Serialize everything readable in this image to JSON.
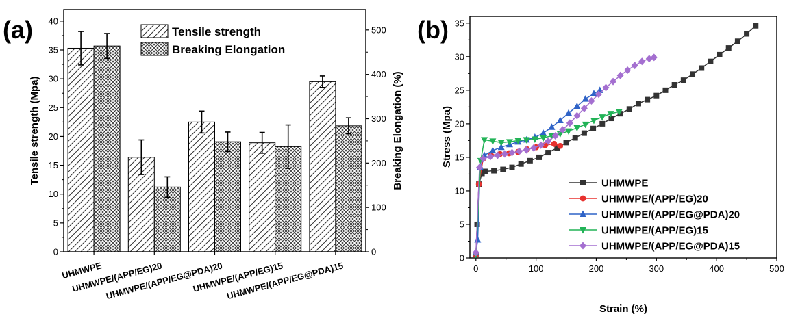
{
  "chart_data": [
    {
      "panel_label": "(a)",
      "type": "bar",
      "categories": [
        "UHMWPE",
        "UHMWPE/(APP/EG)20",
        "UHMWPE/(APP/EG@PDA)20",
        "UHMWPE/(APP/EG)15",
        "UHMWPE/(APP/EG@PDA)15"
      ],
      "series": [
        {
          "name": "Tensile strength",
          "axis": "left",
          "pattern": "diagonal-hatch",
          "values": [
            35.3,
            16.4,
            22.5,
            18.9,
            29.5
          ],
          "errors": [
            2.9,
            3.0,
            1.9,
            1.8,
            1.0
          ]
        },
        {
          "name": "Breaking Elongation",
          "axis": "right",
          "pattern": "crosshatch",
          "values": [
            464,
            146,
            248,
            237,
            284
          ],
          "errors": [
            28,
            23,
            22,
            49,
            18
          ]
        }
      ],
      "ylabel_left": "Tensile strength (Mpa)",
      "ylabel_right": "Breaking Elongation (%)",
      "ylim_left": [
        0,
        42
      ],
      "ylim_right": [
        0,
        546
      ],
      "yticks_left": [
        "0",
        "5",
        "10",
        "15",
        "20",
        "25",
        "30",
        "35",
        "40"
      ],
      "yticks_right": [
        "0",
        "100",
        "200",
        "300",
        "400",
        "500"
      ],
      "legend_position": "top-center"
    },
    {
      "panel_label": "(b)",
      "type": "line",
      "xlabel": "Strain (%)",
      "ylabel": "Stress (Mpa)",
      "xlim": [
        -10,
        500
      ],
      "ylim": [
        0,
        36
      ],
      "xticks": [
        "0",
        "100",
        "200",
        "300",
        "400",
        "500"
      ],
      "yticks": [
        "0",
        "5",
        "10",
        "15",
        "20",
        "25",
        "30",
        "35"
      ],
      "legend_position": "bottom-right",
      "series": [
        {
          "name": "UHMWPE",
          "color": "#333333",
          "marker": "square",
          "x": [
            0,
            2,
            5,
            10,
            15,
            30,
            45,
            60,
            75,
            90,
            105,
            120,
            135,
            150,
            165,
            180,
            195,
            210,
            225,
            240,
            255,
            270,
            285,
            300,
            315,
            330,
            345,
            360,
            375,
            390,
            405,
            420,
            435,
            450,
            465
          ],
          "y": [
            0.5,
            5,
            11,
            12.6,
            12.9,
            13.0,
            13.2,
            13.5,
            14.0,
            14.5,
            15.0,
            15.7,
            16.4,
            17.2,
            17.9,
            18.6,
            19.3,
            20.0,
            20.8,
            21.5,
            22.2,
            23.0,
            23.6,
            24.2,
            25.0,
            25.8,
            26.5,
            27.4,
            28.3,
            29.3,
            30.3,
            31.3,
            32.3,
            33.4,
            34.6
          ]
        },
        {
          "name": "UHMWPE/(APP/EG)20",
          "color": "#e8312e",
          "marker": "circle",
          "x": [
            0,
            5,
            12,
            25,
            40,
            55,
            70,
            85,
            100,
            115,
            130,
            140
          ],
          "y": [
            0.5,
            11,
            14.8,
            15.3,
            15.5,
            15.6,
            15.8,
            16.2,
            16.5,
            16.8,
            17.0,
            16.7
          ]
        },
        {
          "name": "UHMWPE/(APP/EG@PDA)20",
          "color": "#2f63c7",
          "marker": "triangle-up",
          "x": [
            0,
            3,
            7,
            14,
            28,
            42,
            56,
            70,
            84,
            98,
            112,
            126,
            140,
            154,
            168,
            182,
            196,
            206
          ],
          "y": [
            0.8,
            2.7,
            13.5,
            15.3,
            16.0,
            16.5,
            16.9,
            17.3,
            17.6,
            18.0,
            18.6,
            19.5,
            20.5,
            21.6,
            22.6,
            23.7,
            24.5,
            25.0
          ]
        },
        {
          "name": "UHMWPE/(APP/EG)15",
          "color": "#22b357",
          "marker": "triangle-down",
          "x": [
            0,
            8,
            14,
            28,
            42,
            56,
            70,
            84,
            98,
            112,
            126,
            140,
            154,
            168,
            182,
            196,
            210,
            224,
            238
          ],
          "y": [
            0.5,
            14.5,
            17.6,
            17.4,
            17.2,
            17.3,
            17.5,
            17.6,
            17.7,
            17.9,
            18.2,
            18.5,
            18.9,
            19.4,
            19.9,
            20.5,
            21.0,
            21.5,
            21.8
          ]
        },
        {
          "name": "UHMWPE/(APP/EG@PDA)15",
          "color": "#a46fd0",
          "marker": "diamond",
          "x": [
            0,
            6,
            12,
            24,
            36,
            48,
            60,
            72,
            84,
            96,
            108,
            120,
            132,
            144,
            156,
            168,
            180,
            192,
            204,
            216,
            228,
            240,
            252,
            264,
            276,
            288,
            296
          ],
          "y": [
            0.8,
            13.5,
            14.8,
            15.1,
            15.3,
            15.5,
            15.7,
            15.9,
            16.1,
            16.4,
            16.8,
            17.4,
            18.2,
            19.1,
            20.1,
            21.2,
            22.3,
            23.4,
            24.4,
            25.4,
            26.3,
            27.2,
            28.0,
            28.7,
            29.3,
            29.7,
            29.9
          ]
        }
      ]
    }
  ]
}
